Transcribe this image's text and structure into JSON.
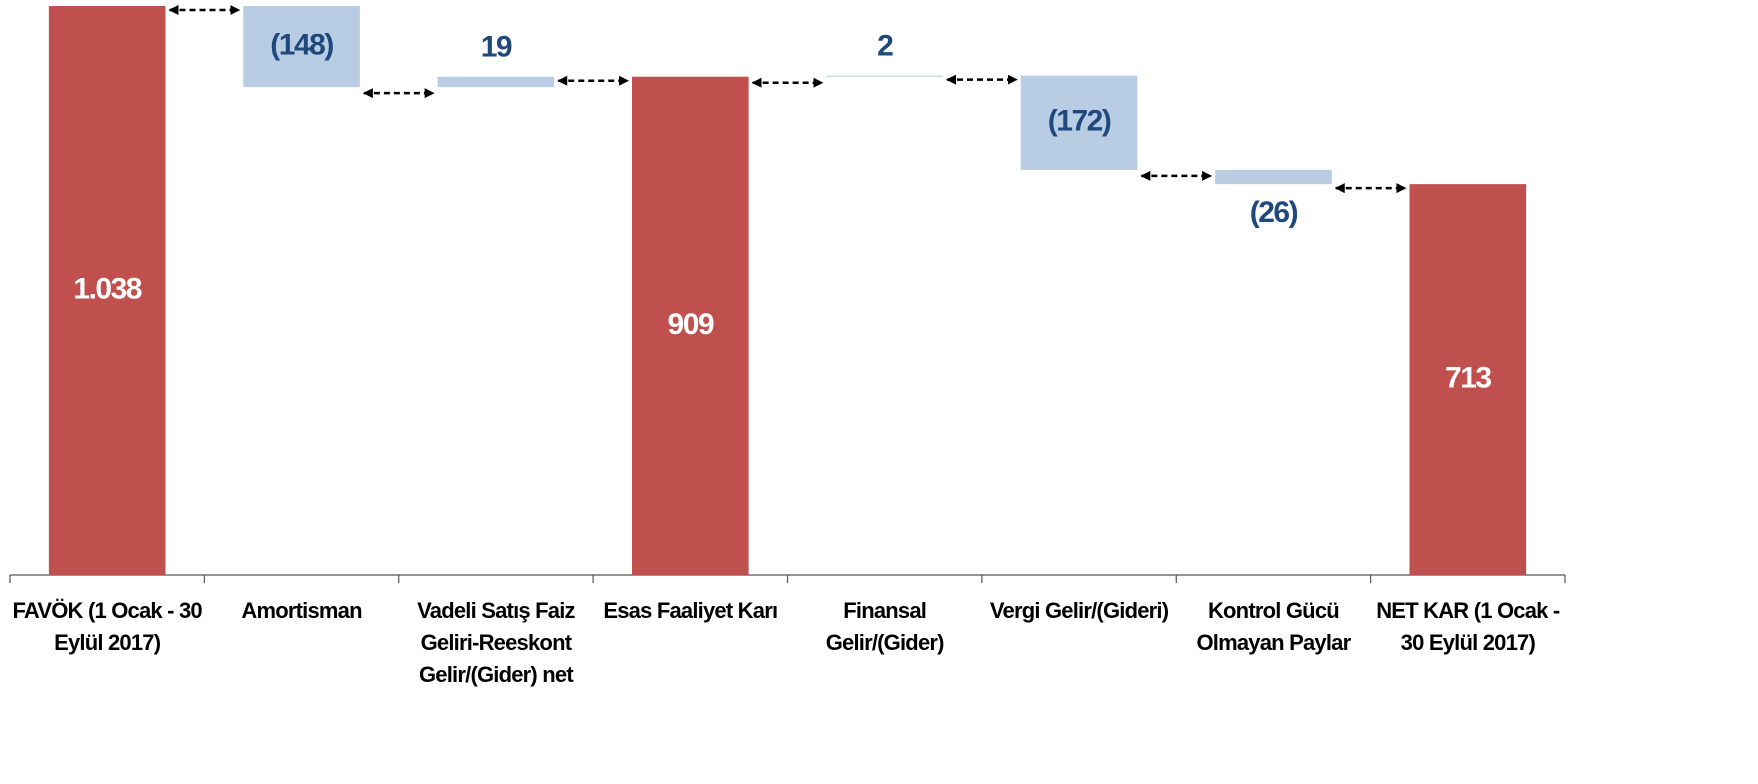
{
  "chart_data": {
    "type": "waterfall",
    "categories": [
      "FAVÖK (1 Ocak - 30 Eylül 2017)",
      "Amortisman",
      "Vadeli Satış Faiz Geliri-Reeskont Gelir/(Gider) net",
      "Esas Faaliyet Karı",
      "Finansal Gelir/(Gider)",
      "Vergi Gelir/(Gideri)",
      "Kontrol Gücü Olmayan Paylar",
      "NET KAR (1 Ocak - 30 Eylül 2017)"
    ],
    "values": [
      1038,
      -148,
      19,
      909,
      2,
      -172,
      -26,
      713
    ],
    "value_labels": [
      "1.038",
      "(148)",
      "19",
      "909",
      "2",
      "(172)",
      "(26)",
      "713"
    ],
    "totals": [
      true,
      false,
      false,
      true,
      false,
      false,
      false,
      true
    ],
    "total_color": "#c0504d",
    "change_color": "#b8cce4",
    "total_label_color": "#ffffff",
    "change_label_color": "#1f497d"
  }
}
